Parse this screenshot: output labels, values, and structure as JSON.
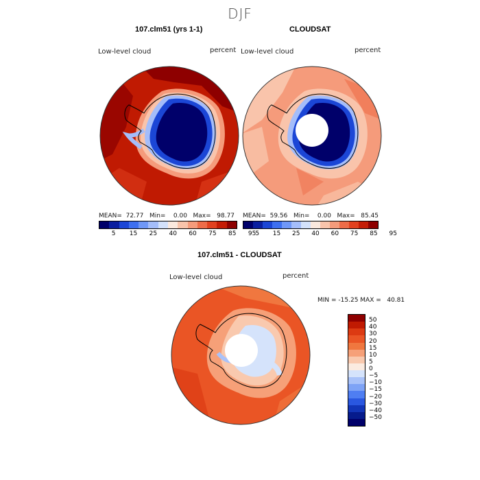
{
  "figure": {
    "title": "DJF"
  },
  "panels": [
    {
      "title": "107.clm51 (yrs 1-1)",
      "field": "Low-level cloud",
      "units": "percent",
      "stats": "MEAN=  72.77   Min=    0.00   Max=   98.77"
    },
    {
      "title": "CLOUDSAT",
      "field": "Low-level cloud",
      "units": "percent",
      "stats": "MEAN=  59.56   Min=    0.00   Max=   85.45"
    },
    {
      "title": "107.clm51 - CLOUDSAT",
      "field": "Low-level cloud",
      "units": "percent",
      "stats": "MIN = -15.25 MAX =   40.81"
    }
  ],
  "colorbar_top": {
    "colors": [
      "#00006a",
      "#0a1fa0",
      "#1b46d6",
      "#3d6ff0",
      "#6f97f7",
      "#a4bdfa",
      "#d3e1fb",
      "#fbe9de",
      "#f9c4ab",
      "#f59b7b",
      "#ee6c48",
      "#e2411f",
      "#c51c05",
      "#8e0000"
    ],
    "labels": [
      "5",
      "15",
      "25",
      "40",
      "60",
      "75",
      "85",
      "95"
    ]
  },
  "colorbar_diff": {
    "colors": [
      "#8e0000",
      "#c01a02",
      "#dc3a12",
      "#ea5525",
      "#f0773f",
      "#f6a078",
      "#f9c9ae",
      "#fbebe0",
      "#d5e3fb",
      "#a9c2f9",
      "#7ea3f6",
      "#4f7ef2",
      "#2a57e0",
      "#1235b7",
      "#061b8c",
      "#00006a"
    ],
    "labels": [
      "50",
      "40",
      "30",
      "20",
      "15",
      "10",
      "5",
      "0",
      "−5",
      "−10",
      "−15",
      "−20",
      "−30",
      "−40",
      "−50"
    ]
  },
  "colors": {
    "deep_blue": "#00006a",
    "dark_red": "#8e0000"
  }
}
